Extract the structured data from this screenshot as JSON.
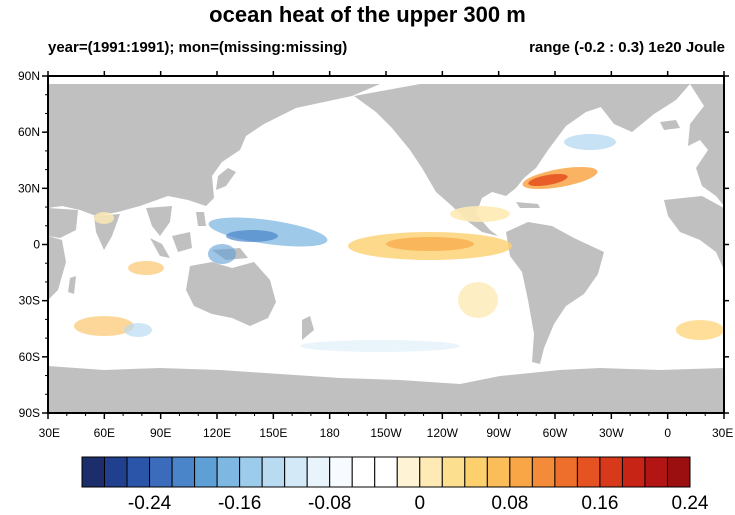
{
  "title": "ocean heat of the upper 300 m",
  "subtitle_left": "year=(1991:1991); mon=(missing:missing)",
  "subtitle_right": "range (-0.2 : 0.3) 1e20 Joule",
  "lat_ticks": [
    "90N",
    "60N",
    "30N",
    "0",
    "30S",
    "60S",
    "90S"
  ],
  "lon_ticks": [
    "30E",
    "60E",
    "90E",
    "120E",
    "150E",
    "180",
    "150W",
    "120W",
    "90W",
    "60W",
    "30W",
    "0",
    "30E"
  ],
  "colorbar": {
    "colors": [
      "#1b2d6b",
      "#213f8f",
      "#2a55a8",
      "#3a6cbb",
      "#4a85c9",
      "#5e9fd6",
      "#7db7e2",
      "#9ccbeb",
      "#b9dbf2",
      "#d3e9f7",
      "#e8f3fb",
      "#f7fbff",
      "#ffffff",
      "#ffffff",
      "#fff3d6",
      "#feeab4",
      "#fde08f",
      "#fdd06e",
      "#fbbd57",
      "#f8a646",
      "#f48b38",
      "#ee6f2c",
      "#e55322",
      "#d9391b",
      "#c82416",
      "#b31414",
      "#9c0f10"
    ],
    "labels": [
      "-0.24",
      "-0.16",
      "-0.08",
      "0",
      "0.08",
      "0.16",
      "0.24"
    ]
  },
  "colors": {
    "land": "#c0c0c0",
    "ocean": "#ffffff",
    "frame": "#000000"
  }
}
